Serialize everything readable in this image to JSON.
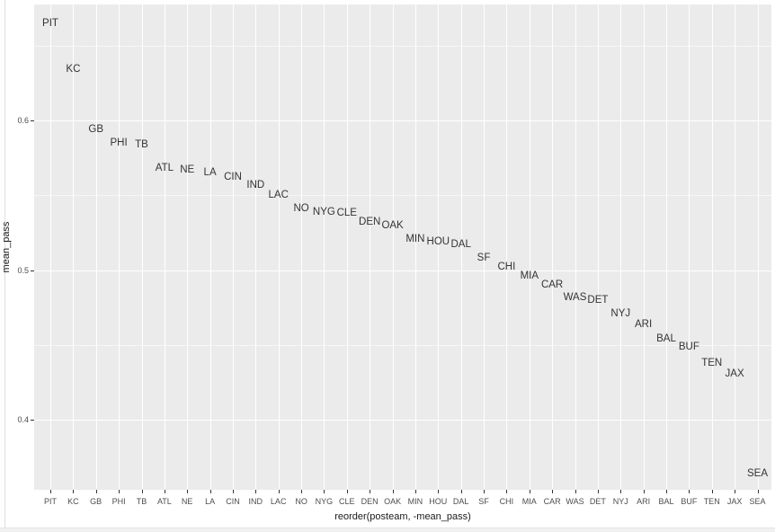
{
  "chart_data": {
    "type": "scatter",
    "subtype": "text-labels",
    "title": "",
    "xlabel": "reorder(posteam, -mean_pass)",
    "ylabel": "mean_pass",
    "grid": true,
    "legend": "none",
    "panel_bg": "#EBEBEB",
    "grid_major_color": "#FFFFFF",
    "label_color": "#333333",
    "axis_text_color": "#4D4D4D",
    "ylim": [
      0.3532,
      0.6775
    ],
    "y_major_ticks": [
      0.6,
      0.5,
      0.4
    ],
    "y_major_tick_labels": [
      "0.6",
      "0.5",
      "0.4"
    ],
    "y_minor_ticks": [
      0.65,
      0.55,
      0.45
    ],
    "categories": [
      "PIT",
      "KC",
      "GB",
      "PHI",
      "TB",
      "ATL",
      "NE",
      "LA",
      "CIN",
      "IND",
      "LAC",
      "NO",
      "NYG",
      "CLE",
      "DEN",
      "OAK",
      "MIN",
      "HOU",
      "DAL",
      "SF",
      "CHI",
      "MIA",
      "CAR",
      "WAS",
      "DET",
      "NYJ",
      "ARI",
      "BAL",
      "BUF",
      "TEN",
      "JAX",
      "SEA"
    ],
    "series": [
      {
        "name": "mean_pass",
        "values": [
          0.665,
          0.634,
          0.594,
          0.585,
          0.584,
          0.568,
          0.567,
          0.565,
          0.562,
          0.557,
          0.55,
          0.541,
          0.539,
          0.538,
          0.532,
          0.53,
          0.521,
          0.519,
          0.517,
          0.508,
          0.502,
          0.496,
          0.49,
          0.482,
          0.48,
          0.471,
          0.464,
          0.454,
          0.449,
          0.438,
          0.431,
          0.364
        ]
      }
    ]
  }
}
